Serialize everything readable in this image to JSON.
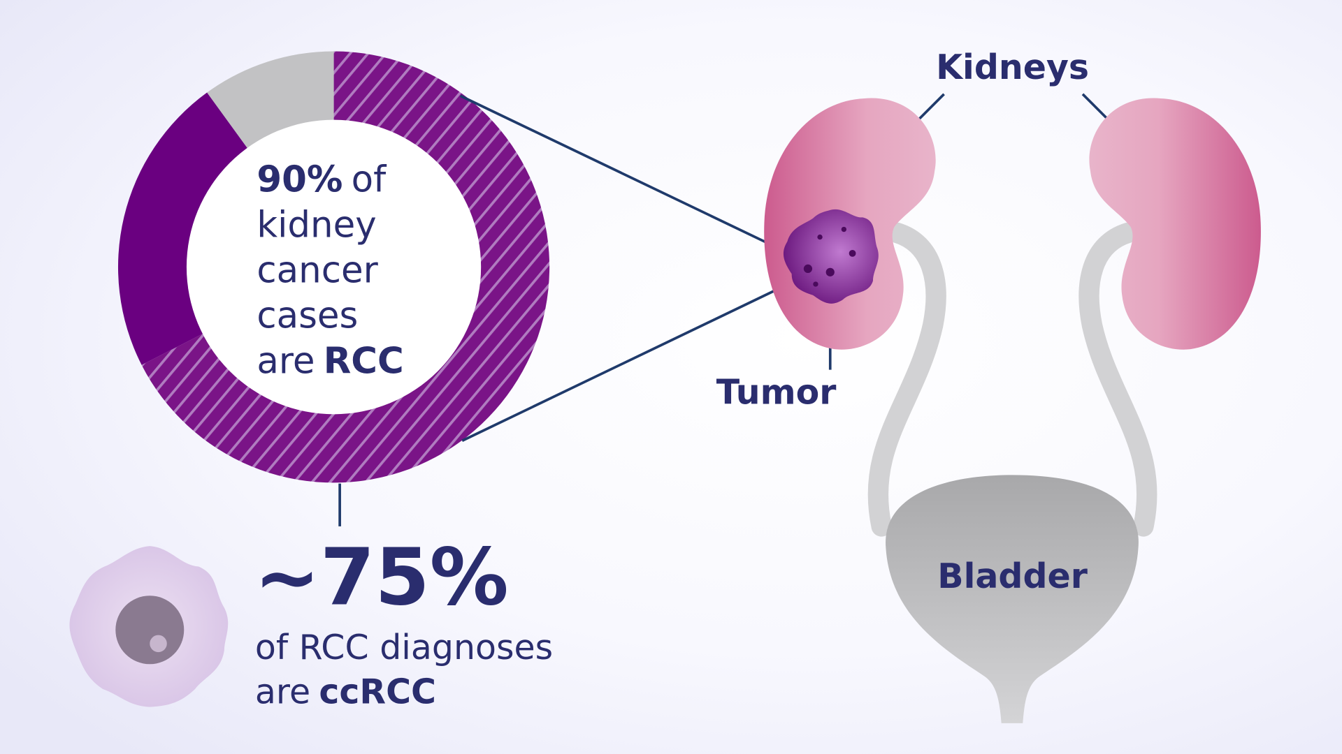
{
  "donut": {
    "values": [
      90,
      75
    ],
    "value_labels": [
      "90%",
      "~75%"
    ]
  },
  "center_text": {
    "lead": "of",
    "lines": [
      "kidney",
      "cancer",
      "cases"
    ],
    "tail": "are",
    "emphasis": "RCC"
  },
  "footnote": {
    "line1": "of RCC diagnoses",
    "tail": "are",
    "emphasis": "ccRCC"
  },
  "labels": {
    "kidneys": "Kidneys",
    "tumor": "Tumor",
    "bladder": "Bladder"
  }
}
